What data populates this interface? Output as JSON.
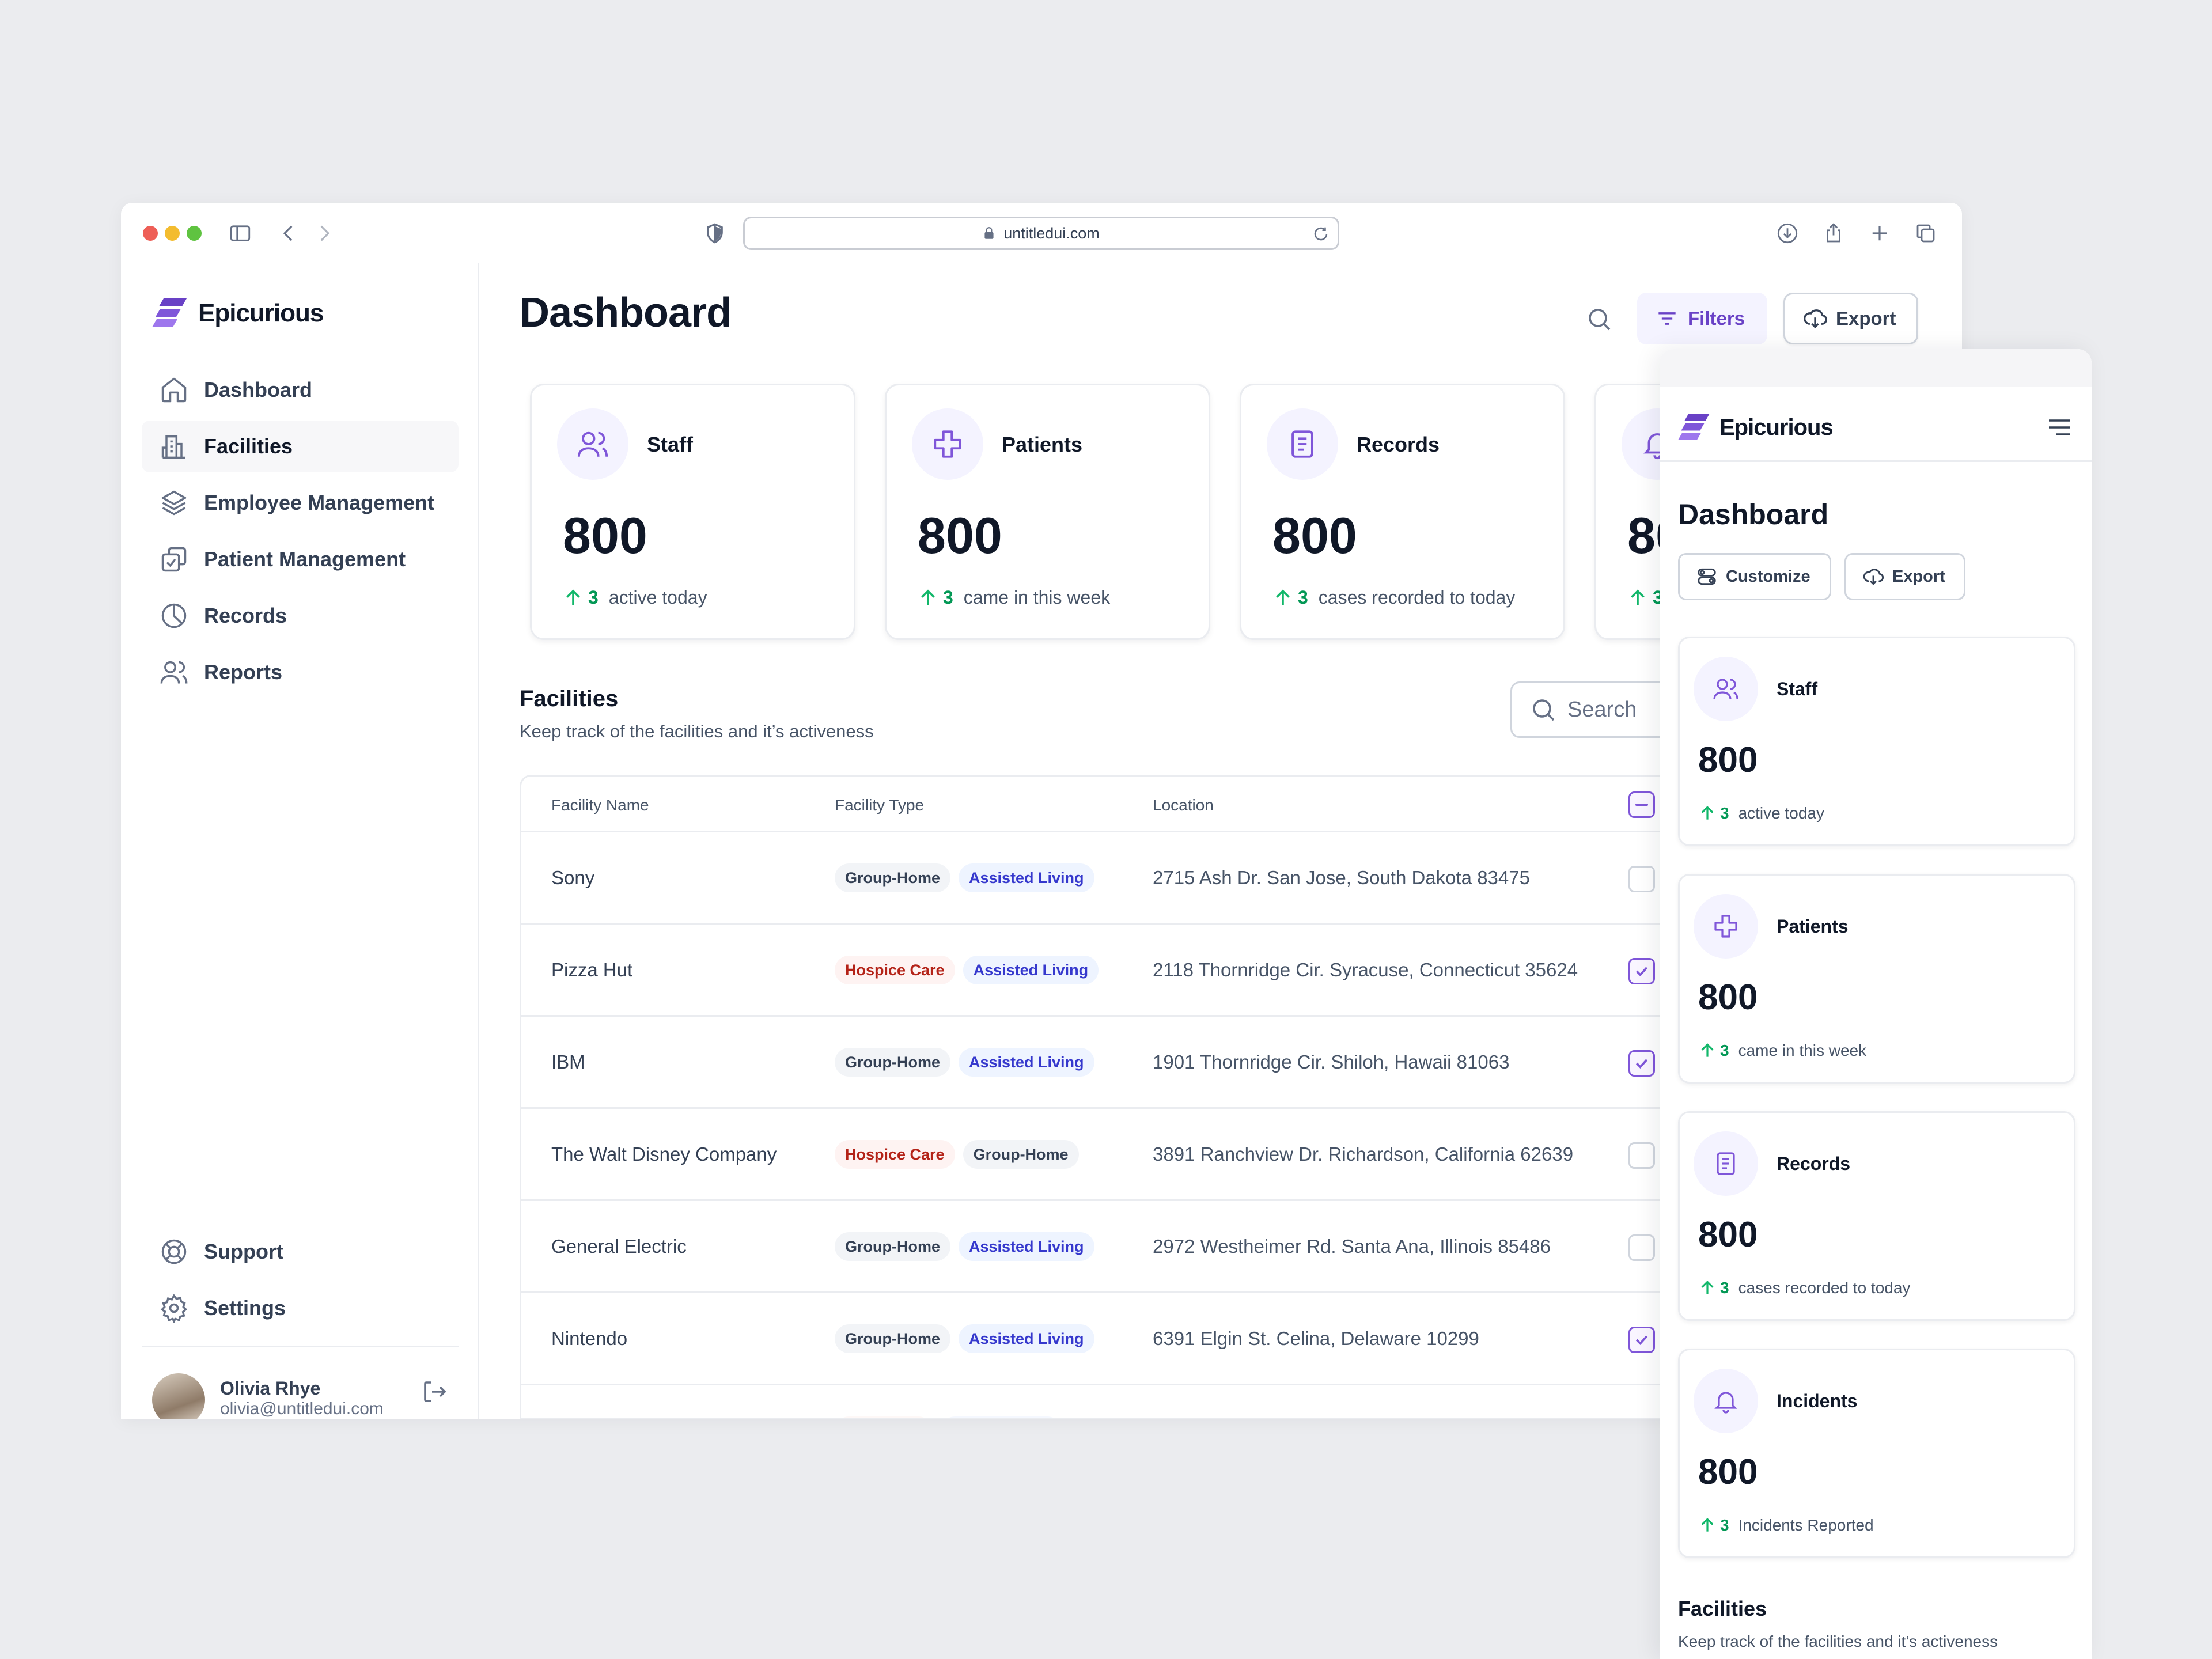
{
  "browser": {
    "url": "untitledui.com"
  },
  "brand": {
    "name": "Epicurious",
    "accent": "#7f56d9"
  },
  "sidebar": {
    "items": [
      {
        "label": "Dashboard",
        "icon": "home-icon"
      },
      {
        "label": "Facilities",
        "icon": "building-icon"
      },
      {
        "label": "Employee Management",
        "icon": "layers-icon"
      },
      {
        "label": "Patient Management",
        "icon": "check-copy-icon"
      },
      {
        "label": "Records",
        "icon": "pie-chart-icon"
      },
      {
        "label": "Reports",
        "icon": "users-icon"
      }
    ],
    "bottom": [
      {
        "label": "Support",
        "icon": "life-buoy-icon"
      },
      {
        "label": "Settings",
        "icon": "gear-icon"
      }
    ],
    "user": {
      "name": "Olivia Rhye",
      "email": "olivia@untitledui.com"
    }
  },
  "header": {
    "title": "Dashboard",
    "filters_label": "Filters",
    "export_label": "Export"
  },
  "stats": [
    {
      "label": "Staff",
      "value": "800",
      "delta": "3",
      "note": "active today",
      "icon": "users-icon"
    },
    {
      "label": "Patients",
      "value": "800",
      "delta": "3",
      "note": "came in this week",
      "icon": "plus-icon"
    },
    {
      "label": "Records",
      "value": "800",
      "delta": "3",
      "note": "cases recorded to today",
      "icon": "file-icon"
    },
    {
      "label": "Incidents",
      "value": "800",
      "delta": "3",
      "note": "Incidents Reported",
      "icon": "bell-icon"
    }
  ],
  "facilities": {
    "title": "Facilities",
    "subtitle": "Keep track of the facilities and it’s activeness",
    "search_placeholder": "Search",
    "columns": [
      "Facility Name",
      "Facility Type",
      "Location"
    ],
    "rows": [
      {
        "name": "Sony",
        "types": [
          "Group-Home",
          "Assisted Living"
        ],
        "location": "2715 Ash Dr. San Jose, South Dakota 83475",
        "checked": false
      },
      {
        "name": "Pizza Hut",
        "types": [
          "Hospice Care",
          "Assisted Living"
        ],
        "location": "2118 Thornridge Cir. Syracuse, Connecticut 35624",
        "checked": true
      },
      {
        "name": "IBM",
        "types": [
          "Group-Home",
          "Assisted Living"
        ],
        "location": "1901 Thornridge Cir. Shiloh, Hawaii 81063",
        "checked": true
      },
      {
        "name": "The Walt Disney Company",
        "types": [
          "Hospice Care",
          "Group-Home"
        ],
        "location": "3891 Ranchview Dr. Richardson, California 62639",
        "checked": false
      },
      {
        "name": "General Electric",
        "types": [
          "Group-Home",
          "Assisted Living"
        ],
        "location": "2972 Westheimer Rd. Santa Ana, Illinois 85486",
        "checked": false
      },
      {
        "name": "Nintendo",
        "types": [
          "Group-Home",
          "Assisted Living"
        ],
        "location": "6391 Elgin St. Celina, Delaware 10299",
        "checked": true
      }
    ]
  },
  "mobile": {
    "title": "Dashboard",
    "customize_label": "Customize",
    "export_label": "Export"
  }
}
